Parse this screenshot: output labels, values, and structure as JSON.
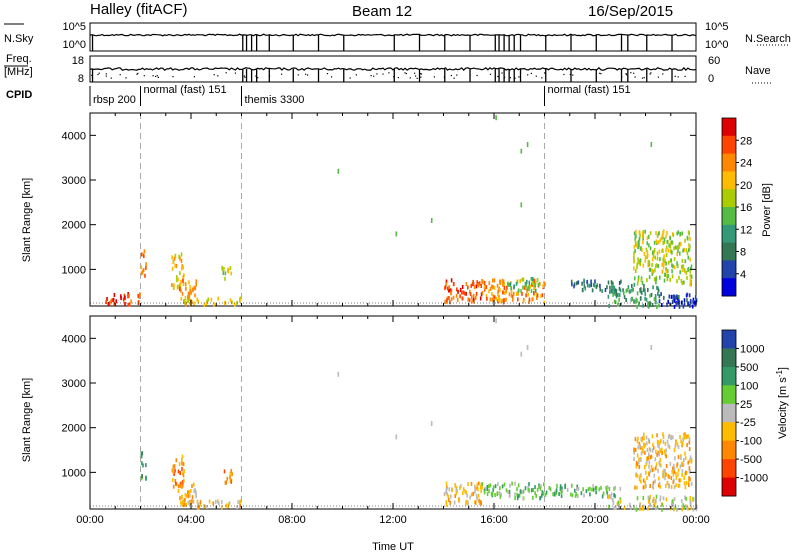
{
  "header": {
    "title": "Halley (fitACF)",
    "beam": "Beam 12",
    "date": "16/Sep/2015"
  },
  "ancillary": {
    "nsky_label": "N.Sky",
    "nsearch_label": "N.Search",
    "freq_label": "Freq.",
    "freq_unit": "[MHz]",
    "nave_label": "Nave",
    "cpid_label": "CPID",
    "top_ticks_left": [
      "10^5",
      "10^0"
    ],
    "top_ticks_right": [
      "10^5",
      "10^0"
    ],
    "freq_ticks": [
      "18",
      "8"
    ],
    "nave_ticks": [
      "60",
      "0"
    ],
    "cpid_segments": [
      {
        "label": "rbsp 200",
        "start": 0.0
      },
      {
        "label": "normal (fast) 151",
        "start": 2.0
      },
      {
        "label": "themis 3300",
        "start": 6.0
      },
      {
        "label": "normal (fast) 151",
        "start": 18.0
      }
    ],
    "spike_times": [
      0.1,
      6.05,
      6.2,
      6.4,
      6.6,
      7.1,
      8.05,
      9.05,
      10.05,
      12.05,
      13.05,
      14.05,
      15.05,
      16.05,
      16.2,
      16.4,
      16.6,
      16.8,
      17.05,
      18.05,
      19.05,
      20.05,
      21.05,
      21.3,
      22.05,
      23.05
    ]
  },
  "chart_data": [
    {
      "type": "heatmap",
      "panel": "power",
      "xlabel": "",
      "ylabel": "Slant Range [km]",
      "xlim": [
        0,
        24
      ],
      "ylim": [
        180,
        4500
      ],
      "y_ticks": [
        1000,
        2000,
        3000,
        4000
      ],
      "colorbar_label": "Power [dB]",
      "colorbar_ticks": [
        "28",
        "24",
        "20",
        "16",
        "12",
        "8",
        "4"
      ],
      "colorbar_colors": [
        "#dd0000",
        "#ff4400",
        "#ff8800",
        "#ffbb00",
        "#aacc00",
        "#55bb44",
        "#339977",
        "#337755",
        "#2244aa",
        "#0000dd"
      ],
      "dashed_times": [
        2,
        6,
        18
      ],
      "blobs": [
        {
          "t": [
            2.0,
            2.2
          ],
          "r": [
            900,
            1550
          ],
          "level": 2
        },
        {
          "t": [
            3.2,
            3.7
          ],
          "r": [
            600,
            1400
          ],
          "level": 3
        },
        {
          "t": [
            3.5,
            4.2
          ],
          "r": [
            300,
            800
          ],
          "level": 2
        },
        {
          "t": [
            5.2,
            5.6
          ],
          "r": [
            800,
            1100
          ],
          "level": 4
        },
        {
          "t": [
            3.5,
            6.0
          ],
          "r": [
            250,
            400
          ],
          "level": 3
        },
        {
          "t": [
            0.6,
            2.0
          ],
          "r": [
            250,
            500
          ],
          "level": 1
        },
        {
          "t": [
            14.0,
            15.5
          ],
          "r": [
            300,
            800
          ],
          "level": 1
        },
        {
          "t": [
            15.5,
            18.0
          ],
          "r": [
            300,
            800
          ],
          "level": 2
        },
        {
          "t": [
            16.5,
            17.8
          ],
          "r": [
            550,
            850
          ],
          "level": 5
        },
        {
          "t": [
            19.0,
            21.0
          ],
          "r": [
            550,
            800
          ],
          "level": 7
        },
        {
          "t": [
            20.5,
            22.5
          ],
          "r": [
            200,
            700
          ],
          "level": 6
        },
        {
          "t": [
            21.5,
            23.8
          ],
          "r": [
            700,
            1900
          ],
          "level": 4
        },
        {
          "t": [
            22.5,
            24.0
          ],
          "r": [
            200,
            500
          ],
          "level": 8
        },
        {
          "t": [
            23.0,
            24.0
          ],
          "r": [
            200,
            350
          ],
          "level": 9
        }
      ],
      "singles": [
        {
          "t": 9.8,
          "r": 3250
        },
        {
          "t": 12.1,
          "r": 1850
        },
        {
          "t": 13.5,
          "r": 2150
        },
        {
          "t": 16.05,
          "r": 4450
        },
        {
          "t": 17.05,
          "r": 3700
        },
        {
          "t": 17.3,
          "r": 3850
        },
        {
          "t": 17.05,
          "r": 2500
        },
        {
          "t": 22.2,
          "r": 3850
        }
      ]
    },
    {
      "type": "heatmap",
      "panel": "velocity",
      "xlabel": "Time UT",
      "ylabel": "Slant Range [km]",
      "xlim": [
        0,
        24
      ],
      "ylim": [
        180,
        4500
      ],
      "x_ticks": [
        "00:00",
        "04:00",
        "08:00",
        "12:00",
        "16:00",
        "20:00",
        "00:00"
      ],
      "y_ticks": [
        1000,
        2000,
        3000,
        4000
      ],
      "colorbar_label": "Velocity [m s^-1]",
      "colorbar_ticks": [
        "1000",
        "500",
        "100",
        "25",
        "-25",
        "-100",
        "-500",
        "-1000"
      ],
      "colorbar_colors": [
        "#2244aa",
        "#337755",
        "#339966",
        "#66cc33",
        "#bbbbbb",
        "#ffbb00",
        "#ff8800",
        "#ff4400",
        "#dd0000"
      ],
      "dashed_times": [
        2,
        6,
        18
      ],
      "blobs": [
        {
          "t": [
            2.0,
            2.2
          ],
          "r": [
            900,
            1550
          ],
          "level": 2
        },
        {
          "t": [
            3.2,
            3.7
          ],
          "r": [
            600,
            1400
          ],
          "level": 6
        },
        {
          "t": [
            3.5,
            4.2
          ],
          "r": [
            300,
            800
          ],
          "level": 5
        },
        {
          "t": [
            5.2,
            5.6
          ],
          "r": [
            800,
            1100
          ],
          "level": 6
        },
        {
          "t": [
            3.5,
            6.0
          ],
          "r": [
            250,
            400
          ],
          "level": 5
        },
        {
          "t": [
            14.0,
            15.5
          ],
          "r": [
            300,
            800
          ],
          "level": 5
        },
        {
          "t": [
            15.5,
            18.0
          ],
          "r": [
            450,
            800
          ],
          "level": 3
        },
        {
          "t": [
            18.0,
            21.0
          ],
          "r": [
            500,
            750
          ],
          "level": 3
        },
        {
          "t": [
            21.5,
            23.8
          ],
          "r": [
            700,
            1900
          ],
          "level": 5
        },
        {
          "t": [
            20.5,
            24.0
          ],
          "r": [
            200,
            500
          ],
          "level": 4
        }
      ],
      "singles": [
        {
          "t": 9.8,
          "r": 3250
        },
        {
          "t": 12.1,
          "r": 1850
        },
        {
          "t": 13.5,
          "r": 2150
        },
        {
          "t": 16.05,
          "r": 4450
        },
        {
          "t": 17.05,
          "r": 3700
        },
        {
          "t": 17.3,
          "r": 3850
        },
        {
          "t": 22.2,
          "r": 3850
        }
      ]
    }
  ]
}
